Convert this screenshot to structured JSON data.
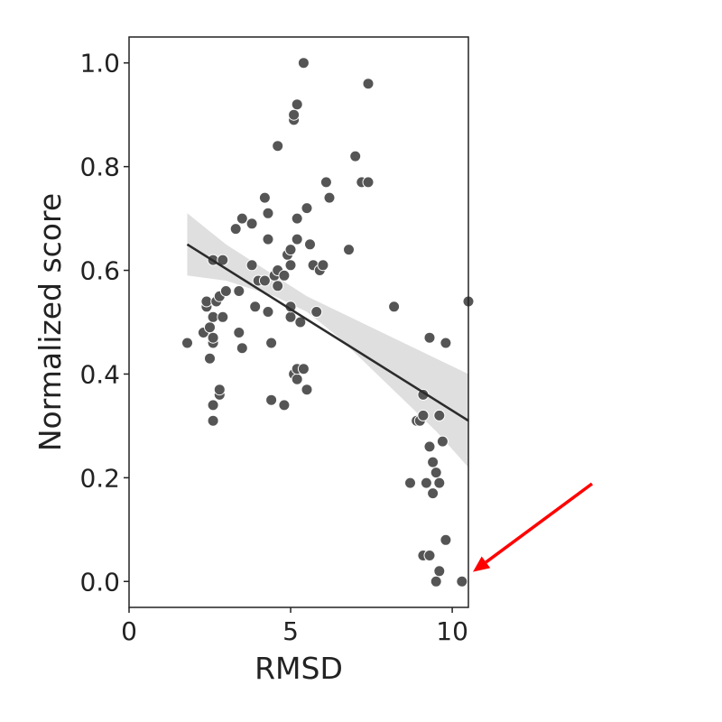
{
  "chart_data": {
    "type": "scatter",
    "title": "",
    "xlabel": "RMSD",
    "ylabel": "Normalized score",
    "xlim": [
      0,
      10.5
    ],
    "ylim": [
      -0.05,
      1.05
    ],
    "xticks": [
      0,
      5,
      10
    ],
    "yticks": [
      0.0,
      0.2,
      0.4,
      0.6,
      0.8,
      1.0
    ],
    "xtick_labels": [
      "0",
      "5",
      "10"
    ],
    "ytick_labels": [
      "0.0",
      "0.2",
      "0.4",
      "0.6",
      "0.8",
      "1.0"
    ],
    "grid": false,
    "legend": false,
    "colors": {
      "points": "#555555",
      "point_edge": "#ffffff",
      "regression_line": "#2b2b2b",
      "confidence_band": "#d9d9d9",
      "arrow": "#ff0000",
      "axes": "#222222"
    },
    "points": [
      [
        1.8,
        0.46
      ],
      [
        2.3,
        0.48
      ],
      [
        2.4,
        0.53
      ],
      [
        2.4,
        0.54
      ],
      [
        2.5,
        0.43
      ],
      [
        2.5,
        0.49
      ],
      [
        2.6,
        0.46
      ],
      [
        2.6,
        0.47
      ],
      [
        2.6,
        0.51
      ],
      [
        2.6,
        0.34
      ],
      [
        2.6,
        0.31
      ],
      [
        2.6,
        0.62
      ],
      [
        2.7,
        0.54
      ],
      [
        2.8,
        0.55
      ],
      [
        2.8,
        0.36
      ],
      [
        2.8,
        0.37
      ],
      [
        2.9,
        0.51
      ],
      [
        2.9,
        0.62
      ],
      [
        3.0,
        0.56
      ],
      [
        3.3,
        0.68
      ],
      [
        3.4,
        0.56
      ],
      [
        3.4,
        0.48
      ],
      [
        3.5,
        0.7
      ],
      [
        3.5,
        0.45
      ],
      [
        3.8,
        0.69
      ],
      [
        3.8,
        0.61
      ],
      [
        3.9,
        0.53
      ],
      [
        4.0,
        0.58
      ],
      [
        4.2,
        0.58
      ],
      [
        4.2,
        0.74
      ],
      [
        4.3,
        0.71
      ],
      [
        4.3,
        0.66
      ],
      [
        4.3,
        0.52
      ],
      [
        4.4,
        0.46
      ],
      [
        4.4,
        0.35
      ],
      [
        4.5,
        0.59
      ],
      [
        4.6,
        0.6
      ],
      [
        4.6,
        0.57
      ],
      [
        4.6,
        0.84
      ],
      [
        4.8,
        0.34
      ],
      [
        4.8,
        0.59
      ],
      [
        4.9,
        0.63
      ],
      [
        5.0,
        0.64
      ],
      [
        5.0,
        0.61
      ],
      [
        5.0,
        0.51
      ],
      [
        5.0,
        0.53
      ],
      [
        5.1,
        0.4
      ],
      [
        5.1,
        0.89
      ],
      [
        5.1,
        0.9
      ],
      [
        5.2,
        0.92
      ],
      [
        5.2,
        0.7
      ],
      [
        5.2,
        0.66
      ],
      [
        5.2,
        0.39
      ],
      [
        5.2,
        0.41
      ],
      [
        5.3,
        0.5
      ],
      [
        5.4,
        0.41
      ],
      [
        5.4,
        1.0
      ],
      [
        5.5,
        0.72
      ],
      [
        5.5,
        0.37
      ],
      [
        5.6,
        0.65
      ],
      [
        5.7,
        0.61
      ],
      [
        5.8,
        0.52
      ],
      [
        5.9,
        0.6
      ],
      [
        6.0,
        0.61
      ],
      [
        6.1,
        0.77
      ],
      [
        6.2,
        0.74
      ],
      [
        6.8,
        0.64
      ],
      [
        7.0,
        0.82
      ],
      [
        7.2,
        0.77
      ],
      [
        7.4,
        0.77
      ],
      [
        7.4,
        0.96
      ],
      [
        8.2,
        0.53
      ],
      [
        8.7,
        0.19
      ],
      [
        8.9,
        0.31
      ],
      [
        9.0,
        0.31
      ],
      [
        9.1,
        0.32
      ],
      [
        9.1,
        0.36
      ],
      [
        9.1,
        0.05
      ],
      [
        9.2,
        0.19
      ],
      [
        9.3,
        0.05
      ],
      [
        9.3,
        0.47
      ],
      [
        9.3,
        0.26
      ],
      [
        9.4,
        0.23
      ],
      [
        9.4,
        0.17
      ],
      [
        9.5,
        0.21
      ],
      [
        9.5,
        0.0
      ],
      [
        9.6,
        0.19
      ],
      [
        9.6,
        0.32
      ],
      [
        9.6,
        0.02
      ],
      [
        9.7,
        0.27
      ],
      [
        9.8,
        0.46
      ],
      [
        9.8,
        0.08
      ],
      [
        10.3,
        0.0
      ],
      [
        10.5,
        0.54
      ]
    ],
    "regression": {
      "x": [
        1.8,
        10.5
      ],
      "y": [
        0.65,
        0.31
      ]
    },
    "confidence_band": {
      "x": [
        1.8,
        3.0,
        4.5,
        5.5,
        6.5,
        7.5,
        8.5,
        9.5,
        10.5
      ],
      "upper": [
        0.71,
        0.65,
        0.59,
        0.55,
        0.52,
        0.49,
        0.46,
        0.43,
        0.4
      ],
      "lower": [
        0.59,
        0.58,
        0.55,
        0.52,
        0.47,
        0.41,
        0.35,
        0.29,
        0.22
      ]
    },
    "annotation": {
      "type": "arrow",
      "points_to": [
        10.5,
        0.015
      ]
    }
  }
}
